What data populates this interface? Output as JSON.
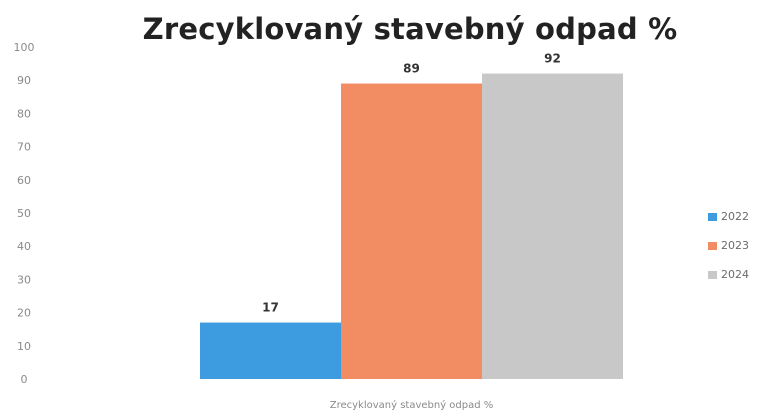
{
  "chart_data": {
    "type": "bar",
    "title": "Zrecyklovaný stavebný odpad %",
    "categories": [
      "Zrecyklovaný stavebný odpad %"
    ],
    "xlabel": "Zrecyklovaný stavebný odpad %",
    "ylabel": "",
    "ylim": [
      0,
      100
    ],
    "yticks": [
      0,
      10,
      20,
      30,
      40,
      50,
      60,
      70,
      80,
      90,
      100
    ],
    "grid": false,
    "legend_position": "right",
    "series": [
      {
        "name": "2022",
        "values": [
          17
        ],
        "color": "#3d9be0"
      },
      {
        "name": "2023",
        "values": [
          89
        ],
        "color": "#f28d63"
      },
      {
        "name": "2024",
        "values": [
          92
        ],
        "color": "#c8c8c8"
      }
    ]
  }
}
